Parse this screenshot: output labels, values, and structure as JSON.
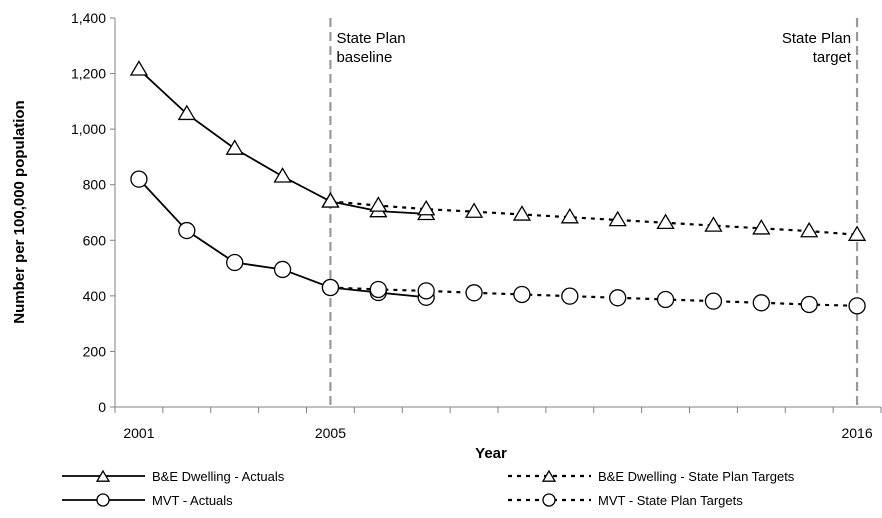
{
  "chart_data": {
    "type": "line",
    "xlabel": "Year",
    "ylabel": "Number per 100,000 population",
    "x": [
      2001,
      2002,
      2003,
      2004,
      2005,
      2006,
      2007,
      2008,
      2009,
      2010,
      2011,
      2012,
      2013,
      2014,
      2015,
      2016
    ],
    "xlim": [
      2000.5,
      2016.5
    ],
    "x_tick_labels": [
      {
        "x": 2001,
        "label": "2001"
      },
      {
        "x": 2005,
        "label": "2005"
      },
      {
        "x": 2016,
        "label": "2016"
      }
    ],
    "ylim": [
      0,
      1400
    ],
    "y_ticks": [
      0,
      200,
      400,
      600,
      800,
      1000,
      1200,
      1400
    ],
    "y_tick_labels": [
      "0",
      "200",
      "400",
      "600",
      "800",
      "1,000",
      "1,200",
      "1,400"
    ],
    "grid": false,
    "legend_position": "bottom",
    "series": [
      {
        "name": "B&E Dwelling - Actuals",
        "marker": "triangle",
        "line": "solid",
        "points": [
          [
            2001,
            1215
          ],
          [
            2002,
            1055
          ],
          [
            2003,
            930
          ],
          [
            2004,
            830
          ],
          [
            2005,
            740
          ],
          [
            2006,
            705
          ],
          [
            2007,
            695
          ]
        ]
      },
      {
        "name": "MVT - Actuals",
        "marker": "circle",
        "line": "solid",
        "points": [
          [
            2001,
            820
          ],
          [
            2002,
            635
          ],
          [
            2003,
            520
          ],
          [
            2004,
            495
          ],
          [
            2005,
            430
          ],
          [
            2006,
            412
          ],
          [
            2007,
            395
          ]
        ]
      },
      {
        "name": "B&E Dwelling - State Plan Targets",
        "marker": "triangle",
        "line": "dotted",
        "points": [
          [
            2005,
            740
          ],
          [
            2006,
            725
          ],
          [
            2007,
            712
          ],
          [
            2008,
            703
          ],
          [
            2009,
            693
          ],
          [
            2010,
            683
          ],
          [
            2011,
            673
          ],
          [
            2012,
            663
          ],
          [
            2013,
            653
          ],
          [
            2014,
            643
          ],
          [
            2015,
            633
          ],
          [
            2016,
            620
          ]
        ]
      },
      {
        "name": "MVT - State Plan Targets",
        "marker": "circle",
        "line": "dotted",
        "points": [
          [
            2005,
            430
          ],
          [
            2006,
            423
          ],
          [
            2007,
            418
          ],
          [
            2008,
            411
          ],
          [
            2009,
            405
          ],
          [
            2010,
            399
          ],
          [
            2011,
            393
          ],
          [
            2012,
            387
          ],
          [
            2013,
            381
          ],
          [
            2014,
            375
          ],
          [
            2015,
            369
          ],
          [
            2016,
            364
          ]
        ]
      }
    ],
    "reference_lines": [
      {
        "x": 2005,
        "label_lines": [
          "State Plan",
          "baseline"
        ],
        "label_align": "left"
      },
      {
        "x": 2016,
        "label_lines": [
          "State Plan",
          "target"
        ],
        "label_align": "right"
      }
    ],
    "colors": {
      "series": "#000000",
      "reference_line": "#999999",
      "axis": "#808080",
      "marker_fill": "#ffffff"
    }
  }
}
